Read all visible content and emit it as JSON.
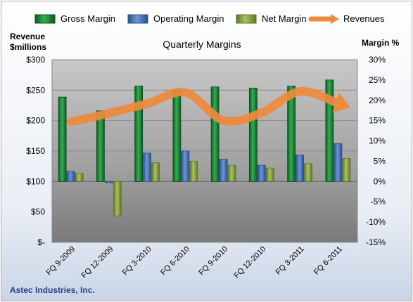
{
  "chart_data": {
    "type": "bar",
    "title": "Quarterly Margins",
    "company": "Astec Industries, Inc.",
    "y_left_label": [
      "Revenue",
      "$millions"
    ],
    "y_right_label": "Margin %",
    "y_left_range": [
      0,
      300
    ],
    "y_right_range": [
      -15,
      30
    ],
    "y_left_ticks": [
      "$-",
      "$50",
      "$100",
      "$150",
      "$200",
      "$250",
      "$300"
    ],
    "y_right_ticks": [
      "-15%",
      "-10%",
      "-5%",
      "0%",
      "5%",
      "10%",
      "15%",
      "20%",
      "25%",
      "30%"
    ],
    "categories": [
      "FQ 9-2009",
      "FQ 12-2009",
      "FQ 3-2010",
      "FQ 6-2010",
      "FQ 9-2010",
      "FQ 12-2010",
      "FQ 3-2011",
      "FQ 6-2011"
    ],
    "series": [
      {
        "name": "Gross Margin",
        "axis": "right",
        "type": "bar",
        "color": "#1f8a3a",
        "values": [
          20.8,
          17.4,
          23.5,
          22.6,
          23.3,
          23.0,
          23.5,
          25.0
        ]
      },
      {
        "name": "Operating Margin",
        "axis": "right",
        "type": "bar",
        "color": "#4a73b8",
        "values": [
          2.5,
          -0.3,
          7.0,
          7.5,
          5.5,
          4.0,
          6.5,
          9.3
        ]
      },
      {
        "name": "Net Margin",
        "axis": "right",
        "type": "bar",
        "color": "#90a84a",
        "values": [
          2.0,
          -8.5,
          4.6,
          5.0,
          4.0,
          3.3,
          4.4,
          5.7
        ]
      },
      {
        "name": "Revenues",
        "axis": "left",
        "type": "line",
        "color": "#ee8a3c",
        "values": [
          198,
          212,
          228,
          246,
          200,
          213,
          248,
          228
        ]
      }
    ],
    "grid": true,
    "legend_position": "top"
  }
}
